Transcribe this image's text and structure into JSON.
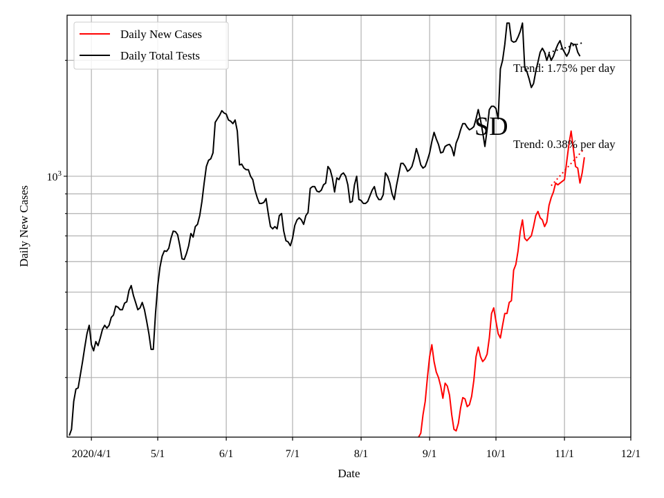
{
  "chart_data": {
    "type": "line",
    "scale": "log",
    "grid": true,
    "legend_placement": "top-left",
    "xlabel": "Date",
    "ylabel": "Daily New Cases",
    "x_start": "2020-03-21",
    "x_ticks": [
      {
        "day": 11,
        "label": "2020/4/1"
      },
      {
        "day": 41,
        "label": "5/1"
      },
      {
        "day": 72,
        "label": "6/1"
      },
      {
        "day": 102,
        "label": "7/1"
      },
      {
        "day": 133,
        "label": "8/1"
      },
      {
        "day": 164,
        "label": "9/1"
      },
      {
        "day": 194,
        "label": "10/1"
      },
      {
        "day": 225,
        "label": "11/1"
      },
      {
        "day": 255,
        "label": "12/1"
      }
    ],
    "xlim": [
      0,
      255
    ],
    "ylim": [
      210,
      2620
    ],
    "y_major_tick": {
      "value": 1000,
      "label_base": "10",
      "label_exp": "3"
    },
    "y_minor_ticks": [
      300,
      400,
      500,
      600,
      700,
      800,
      900,
      2000
    ],
    "annotations": {
      "state": "SD",
      "trend_tests": "Trend: 1.75% per day",
      "trend_cases": "Trend: 0.38% per day"
    },
    "series": [
      {
        "name": "Daily Total Tests",
        "color": "#000000",
        "points": [
          [
            1,
            212
          ],
          [
            2,
            220
          ],
          [
            3,
            260
          ],
          [
            4,
            280
          ],
          [
            5,
            282
          ],
          [
            6,
            305
          ],
          [
            7,
            330
          ],
          [
            8,
            360
          ],
          [
            9,
            390
          ],
          [
            10,
            410
          ],
          [
            11,
            365
          ],
          [
            12,
            352
          ],
          [
            13,
            372
          ],
          [
            14,
            363
          ],
          [
            15,
            380
          ],
          [
            16,
            400
          ],
          [
            17,
            410
          ],
          [
            18,
            403
          ],
          [
            19,
            410
          ],
          [
            20,
            430
          ],
          [
            21,
            436
          ],
          [
            22,
            460
          ],
          [
            23,
            457
          ],
          [
            24,
            450
          ],
          [
            25,
            450
          ],
          [
            26,
            468
          ],
          [
            27,
            472
          ],
          [
            28,
            505
          ],
          [
            29,
            520
          ],
          [
            30,
            490
          ],
          [
            31,
            470
          ],
          [
            32,
            450
          ],
          [
            33,
            455
          ],
          [
            34,
            470
          ],
          [
            35,
            450
          ],
          [
            36,
            420
          ],
          [
            37,
            390
          ],
          [
            38,
            355
          ],
          [
            39,
            355
          ],
          [
            40,
            440
          ],
          [
            41,
            520
          ],
          [
            42,
            580
          ],
          [
            43,
            620
          ],
          [
            44,
            640
          ],
          [
            45,
            638
          ],
          [
            46,
            650
          ],
          [
            47,
            690
          ],
          [
            48,
            720
          ],
          [
            49,
            718
          ],
          [
            50,
            705
          ],
          [
            51,
            660
          ],
          [
            52,
            610
          ],
          [
            53,
            608
          ],
          [
            54,
            630
          ],
          [
            55,
            660
          ],
          [
            56,
            710
          ],
          [
            57,
            695
          ],
          [
            58,
            740
          ],
          [
            59,
            750
          ],
          [
            60,
            790
          ],
          [
            61,
            860
          ],
          [
            62,
            960
          ],
          [
            63,
            1060
          ],
          [
            64,
            1100
          ],
          [
            65,
            1110
          ],
          [
            66,
            1150
          ],
          [
            67,
            1380
          ],
          [
            68,
            1410
          ],
          [
            69,
            1440
          ],
          [
            70,
            1480
          ],
          [
            71,
            1460
          ],
          [
            72,
            1450
          ],
          [
            73,
            1400
          ],
          [
            74,
            1390
          ],
          [
            75,
            1370
          ],
          [
            76,
            1400
          ],
          [
            77,
            1310
          ],
          [
            78,
            1070
          ],
          [
            79,
            1075
          ],
          [
            80,
            1050
          ],
          [
            81,
            1040
          ],
          [
            82,
            1040
          ],
          [
            83,
            1000
          ],
          [
            84,
            980
          ],
          [
            85,
            920
          ],
          [
            86,
            880
          ],
          [
            87,
            850
          ],
          [
            88,
            850
          ],
          [
            89,
            855
          ],
          [
            90,
            875
          ],
          [
            91,
            800
          ],
          [
            92,
            740
          ],
          [
            93,
            730
          ],
          [
            94,
            740
          ],
          [
            95,
            730
          ],
          [
            96,
            790
          ],
          [
            97,
            800
          ],
          [
            98,
            720
          ],
          [
            99,
            680
          ],
          [
            100,
            675
          ],
          [
            101,
            660
          ],
          [
            102,
            690
          ],
          [
            103,
            745
          ],
          [
            104,
            770
          ],
          [
            105,
            780
          ],
          [
            106,
            770
          ],
          [
            107,
            750
          ],
          [
            108,
            790
          ],
          [
            109,
            805
          ],
          [
            110,
            930
          ],
          [
            111,
            940
          ],
          [
            112,
            940
          ],
          [
            113,
            915
          ],
          [
            114,
            910
          ],
          [
            115,
            920
          ],
          [
            116,
            950
          ],
          [
            117,
            960
          ],
          [
            118,
            1060
          ],
          [
            119,
            1040
          ],
          [
            120,
            990
          ],
          [
            121,
            910
          ],
          [
            122,
            990
          ],
          [
            123,
            980
          ],
          [
            124,
            1010
          ],
          [
            125,
            1020
          ],
          [
            126,
            1000
          ],
          [
            127,
            950
          ],
          [
            128,
            855
          ],
          [
            129,
            860
          ],
          [
            130,
            950
          ],
          [
            131,
            1000
          ],
          [
            132,
            870
          ],
          [
            133,
            865
          ],
          [
            134,
            850
          ],
          [
            135,
            850
          ],
          [
            136,
            860
          ],
          [
            137,
            890
          ],
          [
            138,
            920
          ],
          [
            139,
            940
          ],
          [
            140,
            890
          ],
          [
            141,
            870
          ],
          [
            142,
            870
          ],
          [
            143,
            895
          ],
          [
            144,
            1020
          ],
          [
            145,
            1000
          ],
          [
            146,
            960
          ],
          [
            147,
            900
          ],
          [
            148,
            870
          ],
          [
            149,
            945
          ],
          [
            150,
            1010
          ],
          [
            151,
            1080
          ],
          [
            152,
            1080
          ],
          [
            153,
            1060
          ],
          [
            154,
            1030
          ],
          [
            155,
            1040
          ],
          [
            156,
            1060
          ],
          [
            157,
            1110
          ],
          [
            158,
            1180
          ],
          [
            159,
            1130
          ],
          [
            160,
            1070
          ],
          [
            161,
            1050
          ],
          [
            162,
            1060
          ],
          [
            163,
            1100
          ],
          [
            164,
            1150
          ],
          [
            165,
            1230
          ],
          [
            166,
            1300
          ],
          [
            167,
            1250
          ],
          [
            168,
            1210
          ],
          [
            169,
            1150
          ],
          [
            170,
            1155
          ],
          [
            171,
            1195
          ],
          [
            172,
            1205
          ],
          [
            173,
            1210
          ],
          [
            174,
            1185
          ],
          [
            175,
            1130
          ],
          [
            176,
            1220
          ],
          [
            177,
            1260
          ],
          [
            178,
            1320
          ],
          [
            179,
            1370
          ],
          [
            180,
            1370
          ],
          [
            181,
            1340
          ],
          [
            182,
            1320
          ],
          [
            183,
            1330
          ],
          [
            184,
            1345
          ],
          [
            185,
            1410
          ],
          [
            186,
            1490
          ],
          [
            187,
            1400
          ],
          [
            188,
            1300
          ],
          [
            189,
            1195
          ],
          [
            190,
            1320
          ],
          [
            191,
            1490
          ],
          [
            192,
            1520
          ],
          [
            193,
            1520
          ],
          [
            194,
            1500
          ],
          [
            195,
            1410
          ],
          [
            196,
            1900
          ],
          [
            197,
            2000
          ],
          [
            198,
            2200
          ],
          [
            199,
            2500
          ],
          [
            200,
            2500
          ],
          [
            201,
            2250
          ],
          [
            202,
            2230
          ],
          [
            203,
            2240
          ],
          [
            204,
            2300
          ],
          [
            205,
            2380
          ],
          [
            206,
            2500
          ],
          [
            207,
            1920
          ],
          [
            208,
            1870
          ],
          [
            209,
            1790
          ],
          [
            210,
            1700
          ],
          [
            211,
            1740
          ],
          [
            212,
            1870
          ],
          [
            213,
            1980
          ],
          [
            214,
            2100
          ],
          [
            215,
            2150
          ],
          [
            216,
            2100
          ],
          [
            217,
            2000
          ],
          [
            218,
            2080
          ],
          [
            219,
            2000
          ],
          [
            220,
            2050
          ],
          [
            221,
            2130
          ],
          [
            222,
            2200
          ],
          [
            223,
            2250
          ],
          [
            224,
            2150
          ],
          [
            225,
            2100
          ],
          [
            226,
            2050
          ],
          [
            227,
            2100
          ],
          [
            228,
            2220
          ],
          [
            229,
            2200
          ],
          [
            230,
            2200
          ],
          [
            231,
            2100
          ],
          [
            232,
            2050
          ]
        ]
      },
      {
        "name": "Daily New Cases",
        "color": "#ff0000",
        "points": [
          [
            158,
            207
          ],
          [
            159,
            210
          ],
          [
            160,
            215
          ],
          [
            161,
            240
          ],
          [
            162,
            260
          ],
          [
            163,
            300
          ],
          [
            164,
            340
          ],
          [
            165,
            365
          ],
          [
            166,
            330
          ],
          [
            167,
            310
          ],
          [
            168,
            300
          ],
          [
            169,
            285
          ],
          [
            170,
            265
          ],
          [
            171,
            290
          ],
          [
            172,
            285
          ],
          [
            173,
            270
          ],
          [
            174,
            240
          ],
          [
            175,
            220
          ],
          [
            176,
            218
          ],
          [
            177,
            228
          ],
          [
            178,
            250
          ],
          [
            179,
            266
          ],
          [
            180,
            264
          ],
          [
            181,
            252
          ],
          [
            182,
            255
          ],
          [
            183,
            268
          ],
          [
            184,
            295
          ],
          [
            185,
            340
          ],
          [
            186,
            360
          ],
          [
            187,
            340
          ],
          [
            188,
            330
          ],
          [
            189,
            335
          ],
          [
            190,
            345
          ],
          [
            191,
            380
          ],
          [
            192,
            440
          ],
          [
            193,
            455
          ],
          [
            194,
            420
          ],
          [
            195,
            390
          ],
          [
            196,
            380
          ],
          [
            197,
            410
          ],
          [
            198,
            440
          ],
          [
            199,
            440
          ],
          [
            200,
            470
          ],
          [
            201,
            475
          ],
          [
            202,
            570
          ],
          [
            203,
            590
          ],
          [
            204,
            640
          ],
          [
            205,
            720
          ],
          [
            206,
            770
          ],
          [
            207,
            690
          ],
          [
            208,
            680
          ],
          [
            209,
            690
          ],
          [
            210,
            700
          ],
          [
            211,
            740
          ],
          [
            212,
            790
          ],
          [
            213,
            810
          ],
          [
            214,
            780
          ],
          [
            215,
            770
          ],
          [
            216,
            740
          ],
          [
            217,
            760
          ],
          [
            218,
            840
          ],
          [
            219,
            880
          ],
          [
            220,
            910
          ],
          [
            221,
            960
          ],
          [
            222,
            950
          ],
          [
            223,
            960
          ],
          [
            224,
            970
          ],
          [
            225,
            980
          ],
          [
            226,
            1090
          ],
          [
            227,
            1210
          ],
          [
            228,
            1310
          ],
          [
            229,
            1180
          ],
          [
            230,
            1060
          ],
          [
            231,
            1050
          ],
          [
            232,
            960
          ],
          [
            233,
            1020
          ],
          [
            234,
            1120
          ]
        ]
      },
      {
        "name": "",
        "color": "#000000",
        "dotted": true,
        "points": [
          [
            216,
            2080
          ],
          [
            233,
            2220
          ]
        ]
      },
      {
        "name": "",
        "color": "#ff0000",
        "dotted": true,
        "points": [
          [
            219,
            945
          ],
          [
            234,
            1180
          ]
        ]
      }
    ]
  }
}
